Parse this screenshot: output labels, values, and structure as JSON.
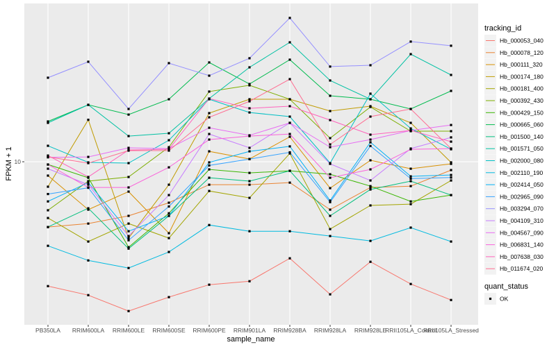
{
  "chart_data": {
    "type": "line",
    "title": "",
    "xlabel": "sample_name",
    "ylabel": "FPKM + 1",
    "y_scale": "log10",
    "y_ticks": [
      10
    ],
    "y_tick_labels": [
      "10"
    ],
    "ylim": [
      1.65,
      57.5
    ],
    "grid": true,
    "legend_position": "right",
    "categories": [
      "PB350LA",
      "RRIM600LA",
      "RRIM600LE",
      "RRIM600SE",
      "RRIM600PE",
      "RRIM901LA",
      "RRIM928BA",
      "RRIM928LA",
      "RRIM928LE",
      "RRII105LA_Control",
      "RRII105LA_Stressed"
    ],
    "legend_title": "tracking_id",
    "shape_legend_title": "quant_status",
    "shape_legend_items": [
      "OK"
    ],
    "series": [
      {
        "name": "Hb_000053_040",
        "color": "#F8766D",
        "values": [
          2.53,
          2.29,
          1.92,
          2.24,
          2.57,
          2.67,
          3.44,
          2.31,
          3.31,
          2.59,
          2.17
        ]
      },
      {
        "name": "Hb_000078_120",
        "color": "#EA8331",
        "values": [
          4.86,
          5.05,
          5.5,
          6.36,
          7.76,
          7.76,
          7.94,
          5.89,
          7.53,
          7.64,
          9.12
        ]
      },
      {
        "name": "Hb_000111_320",
        "color": "#D89000",
        "values": [
          8.58,
          5.89,
          7.19,
          4.54,
          11.22,
          10.31,
          13.18,
          7.47,
          10.16,
          9.26,
          9.77
        ]
      },
      {
        "name": "Hb_000174_180",
        "color": "#C09B00",
        "values": [
          7.59,
          15.9,
          4.3,
          7.76,
          17.11,
          19.95,
          19.95,
          17.51,
          18.48,
          15.37,
          9.93
        ]
      },
      {
        "name": "Hb_000181_400",
        "color": "#A3A500",
        "values": [
          5.37,
          4.14,
          5.05,
          4.3,
          7.24,
          6.71,
          10.96,
          4.75,
          6.17,
          6.26,
          8.13
        ]
      },
      {
        "name": "Hb_000392_430",
        "color": "#7CAE00",
        "values": [
          5.85,
          8.07,
          8.45,
          11.75,
          21.72,
          23.27,
          19.95,
          12.98,
          18.33,
          14.02,
          14.02
        ]
      },
      {
        "name": "Hb_000429_150",
        "color": "#39B600",
        "values": [
          9.7,
          8.38,
          3.89,
          5.66,
          9.19,
          8.84,
          9.05,
          8.71,
          7.64,
          6.45,
          6.92
        ]
      },
      {
        "name": "Hb_000665_060",
        "color": "#00BB4E",
        "values": [
          15.61,
          18.76,
          16.84,
          19.95,
          29.97,
          23.61,
          30.9,
          20.73,
          19.95,
          17.92,
          21.88
        ]
      },
      {
        "name": "Hb_001500_140",
        "color": "#00BF7D",
        "values": [
          4.86,
          5.98,
          3.83,
          5.5,
          8.38,
          8.07,
          9.05,
          5.5,
          7.36,
          8.07,
          6.92
        ]
      },
      {
        "name": "Hb_001571_050",
        "color": "#00C1A3",
        "values": [
          15.37,
          18.76,
          13.28,
          13.7,
          20.1,
          28.39,
          37.43,
          24.55,
          19.95,
          32.85,
          26.1
        ]
      },
      {
        "name": "Hb_002000_080",
        "color": "#00BFC4",
        "values": [
          11.93,
          9.93,
          9.85,
          12.69,
          19.95,
          17.24,
          16.47,
          9.85,
          21.22,
          14.45,
          11.48
        ]
      },
      {
        "name": "Hb_002110_190",
        "color": "#00BAE0",
        "values": [
          3.95,
          3.36,
          3.09,
          3.69,
          4.97,
          4.64,
          4.64,
          4.4,
          4.17,
          4.83,
          4.14
        ]
      },
      {
        "name": "Hb_002414_050",
        "color": "#00B0F6",
        "values": [
          6.45,
          7.94,
          4.64,
          5.5,
          9.93,
          11.22,
          11.85,
          6.51,
          12.4,
          8.51,
          8.64
        ]
      },
      {
        "name": "Hb_002965_090",
        "color": "#35A2FF",
        "values": [
          7.0,
          7.5,
          4.2,
          6.1,
          9.6,
          10.3,
          11.1,
          6.4,
          11.9,
          8.3,
          8.4
        ]
      },
      {
        "name": "Hb_003294_070",
        "color": "#9590FF",
        "values": [
          25.31,
          30.2,
          17.92,
          29.74,
          25.89,
          31.39,
          49.0,
          28.63,
          29.06,
          37.73,
          36.04
        ]
      },
      {
        "name": "Hb_004109_310",
        "color": "#C77CFF",
        "values": [
          9.26,
          7.76,
          4.4,
          6.92,
          13.59,
          11.66,
          15.37,
          9.77,
          8.13,
          11.57,
          13.09
        ]
      },
      {
        "name": "Hb_004567_090",
        "color": "#E76BF3",
        "values": [
          10.5,
          10.55,
          11.66,
          11.57,
          14.56,
          13.39,
          15.37,
          11.75,
          12.78,
          14.13,
          15.01
        ]
      },
      {
        "name": "Hb_006831_140",
        "color": "#FA62DB",
        "values": [
          9.7,
          7.53,
          7.53,
          9.4,
          12.78,
          13.28,
          13.59,
          8.38,
          9.19,
          11.48,
          11.57
        ]
      },
      {
        "name": "Hb_007638_030",
        "color": "#FF62BC",
        "values": [
          10.71,
          8.45,
          11.39,
          11.48,
          20.1,
          18.05,
          18.48,
          15.85,
          13.49,
          14.13,
          12.49
        ]
      },
      {
        "name": "Hb_011674_020",
        "color": "#FF6C91",
        "values": [
          10.55,
          9.85,
          11.31,
          11.31,
          16.34,
          19.5,
          24.92,
          12.11,
          16.47,
          17.92,
          11.57
        ]
      }
    ]
  }
}
